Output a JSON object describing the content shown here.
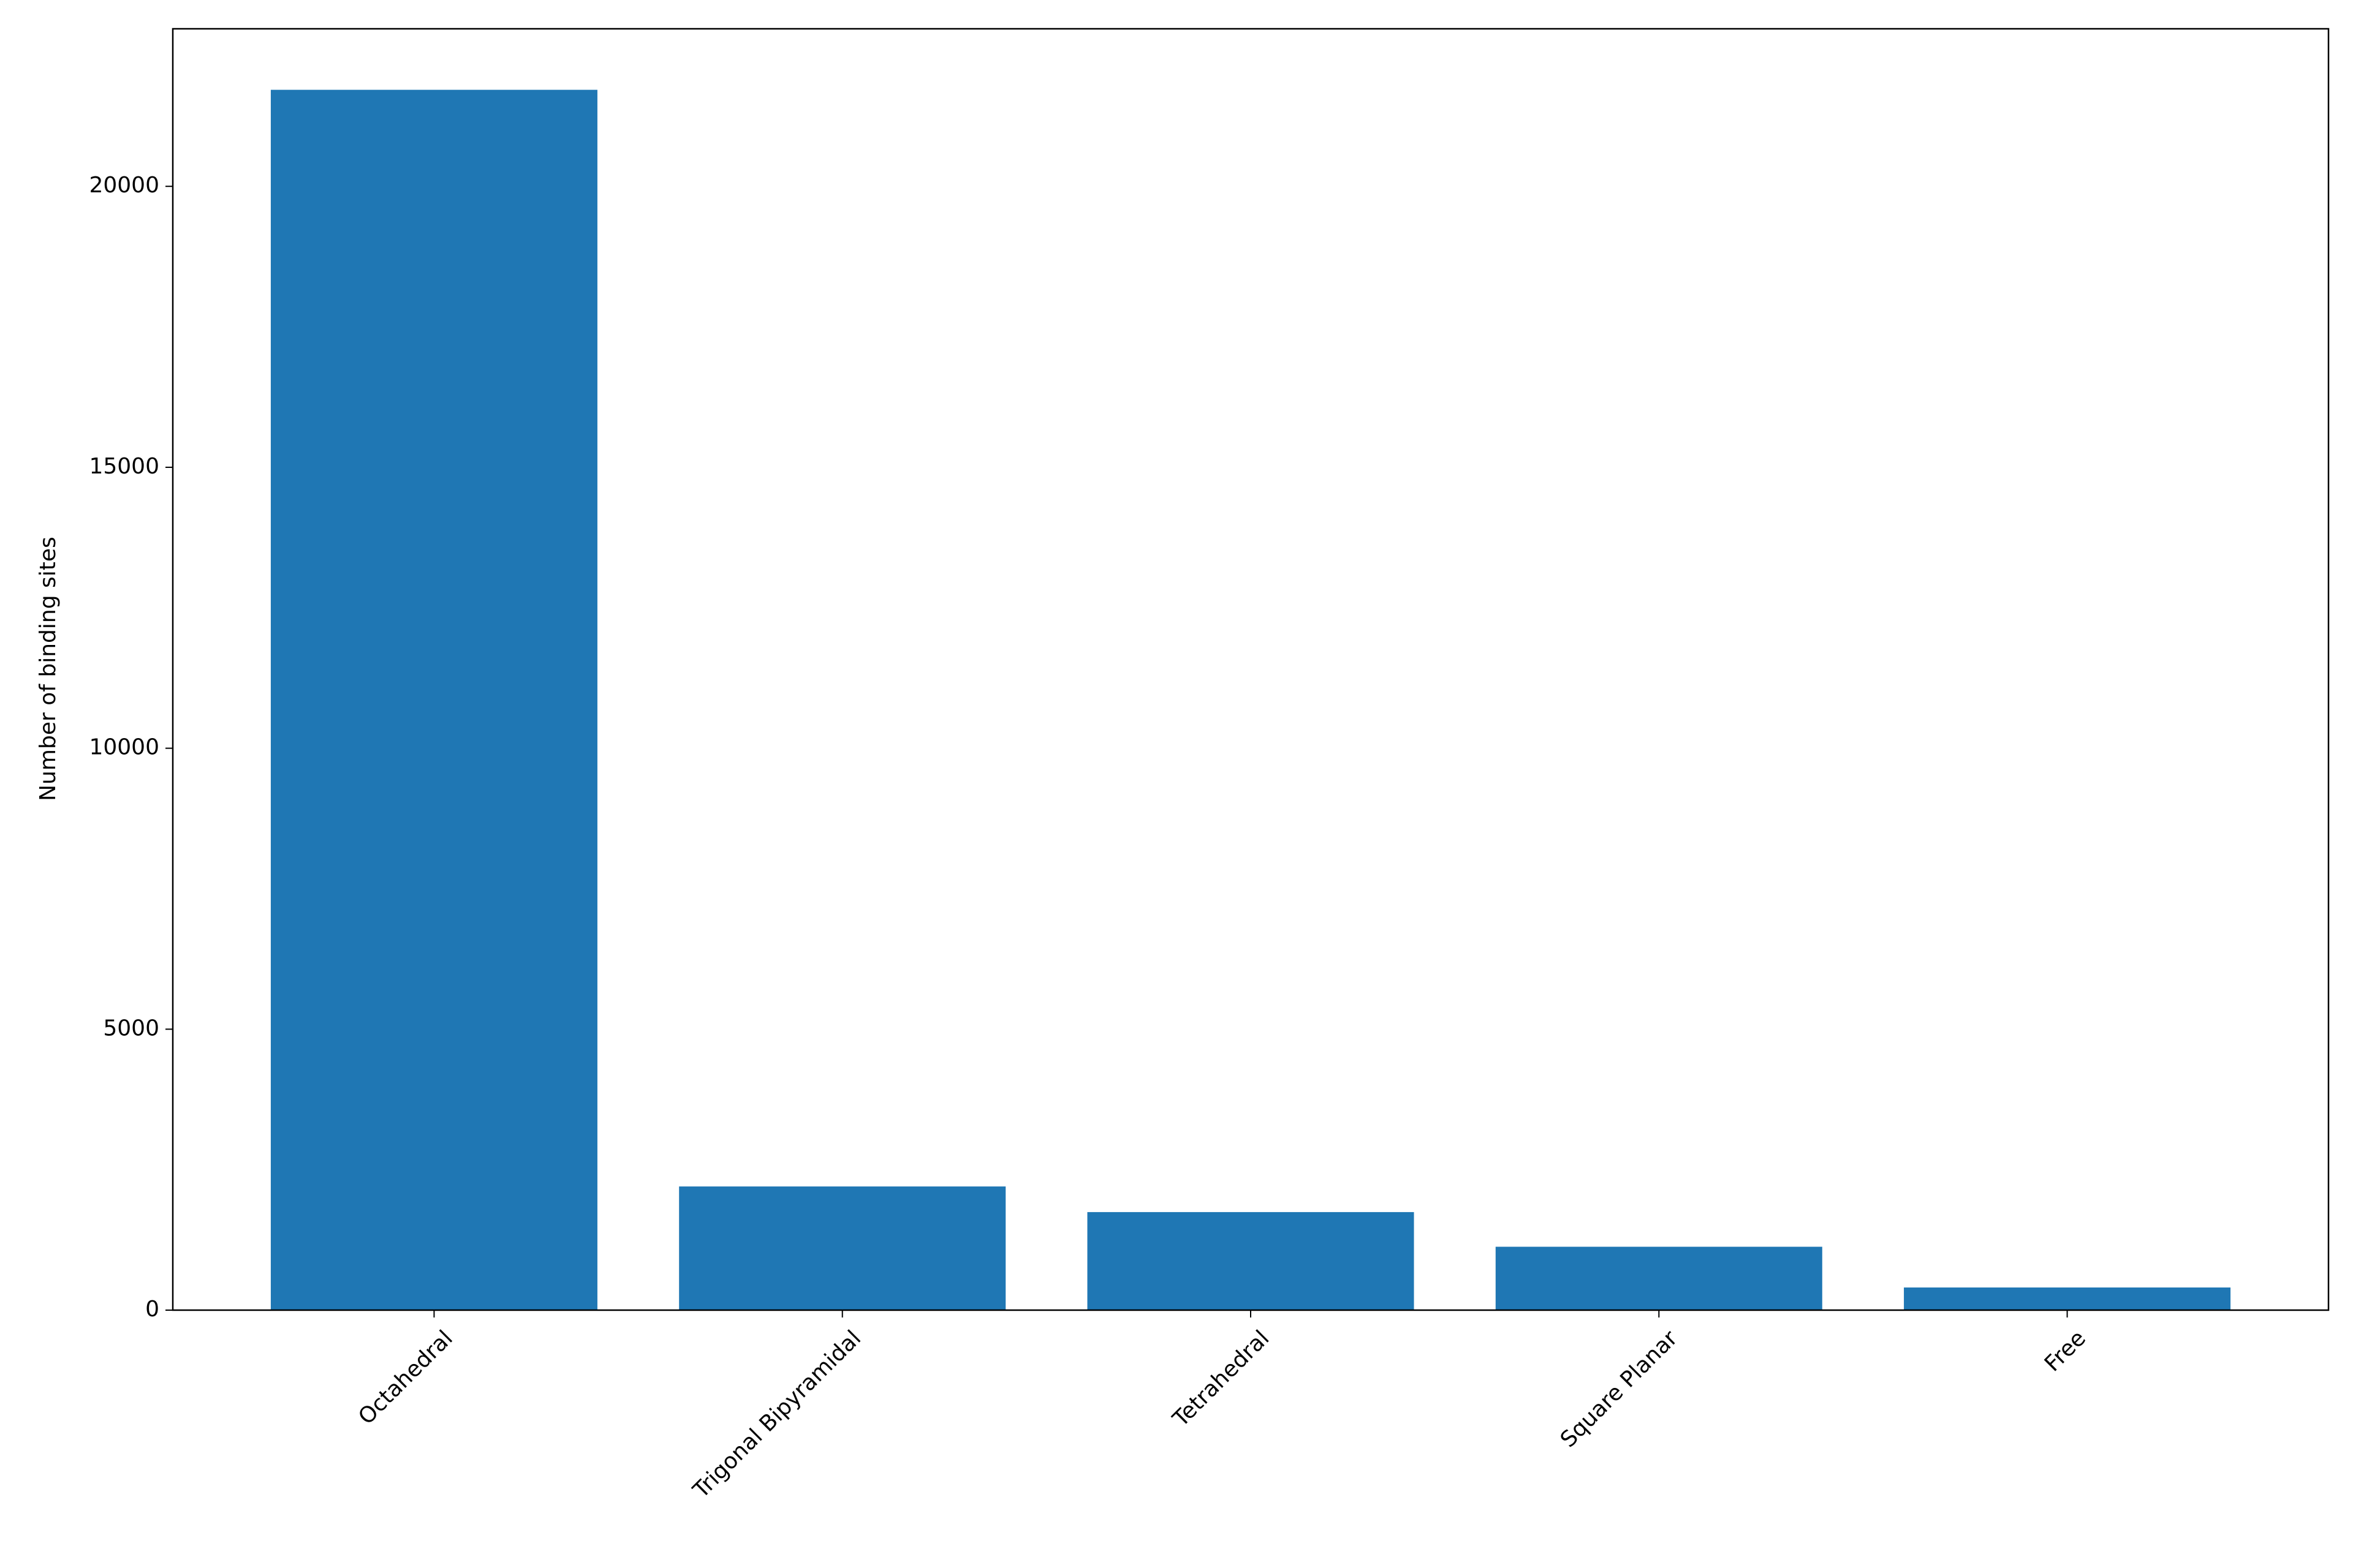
{
  "chart_data": {
    "type": "bar",
    "y_label": "Number of binding sites",
    "categories": [
      "Octahedral",
      "Trigonal Bipyramidal",
      "Tetrahedral",
      "Square Planar",
      "Free"
    ],
    "values": [
      21718,
      2201,
      1745,
      1128,
      403
    ],
    "color": "#1f77b4",
    "ylim": [
      0,
      22804
    ],
    "yticks": [
      0,
      5000,
      10000,
      15000,
      20000
    ],
    "grid": false
  }
}
